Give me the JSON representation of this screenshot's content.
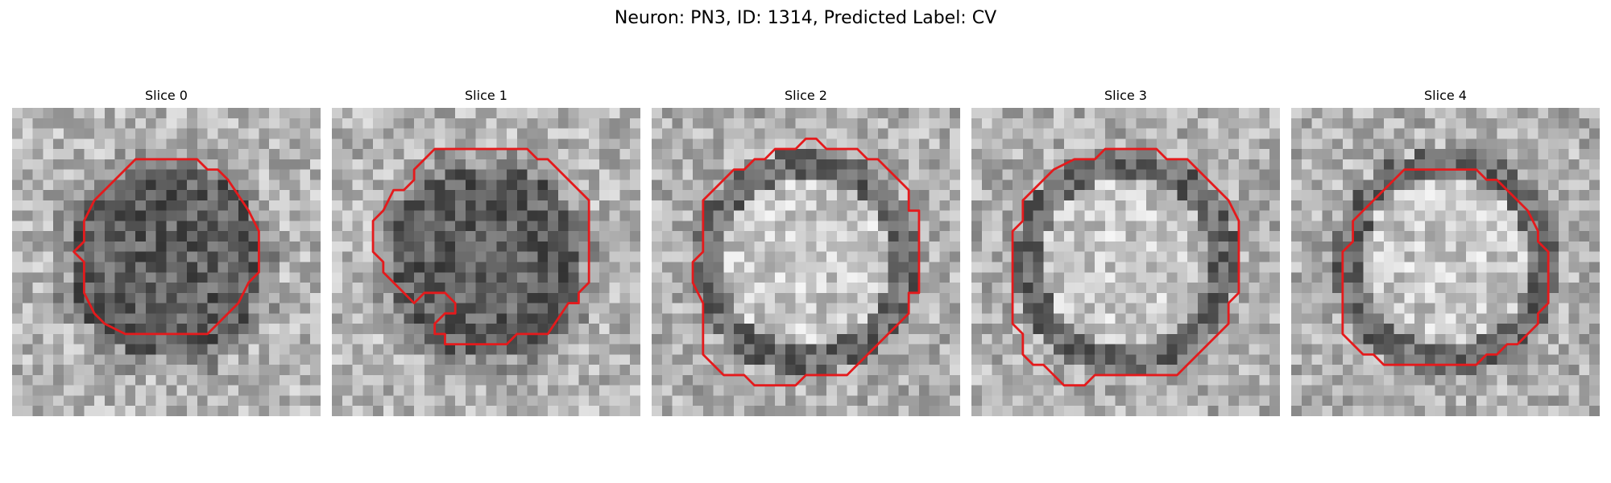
{
  "figure": {
    "title": "Neuron: PN3, ID: 1314, Predicted Label: CV"
  },
  "panels": [
    {
      "title": "Slice 0",
      "contour_color": "#e41a1c",
      "cell_tone": "dark"
    },
    {
      "title": "Slice 1",
      "contour_color": "#e41a1c",
      "cell_tone": "dark"
    },
    {
      "title": "Slice 2",
      "contour_color": "#e41a1c",
      "cell_tone": "light"
    },
    {
      "title": "Slice 3",
      "contour_color": "#e41a1c",
      "cell_tone": "light"
    },
    {
      "title": "Slice 4",
      "contour_color": "#e41a1c",
      "cell_tone": "light"
    }
  ],
  "colormap": "gray"
}
